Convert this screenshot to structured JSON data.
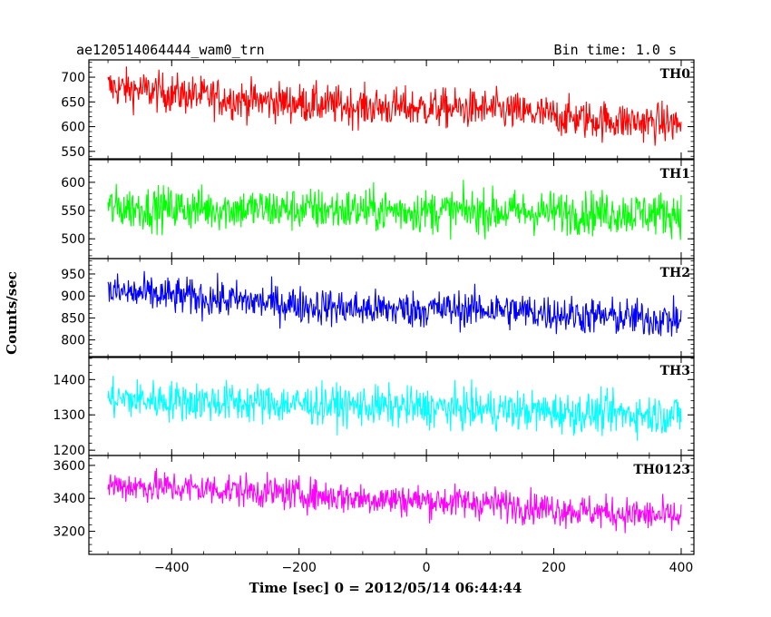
{
  "header": {
    "title": "ae120514064444_wam0_trn",
    "bin_time": "Bin time: 1.0 s"
  },
  "chart_data": {
    "type": "line",
    "xlabel": "Time [sec] 0 = 2012/05/14 06:44:44",
    "ylabel": "Counts/sec",
    "xlim": [
      -530,
      420
    ],
    "x_ticks": [
      -400,
      -200,
      0,
      200,
      400
    ],
    "x_start": -500,
    "x_end": 400,
    "x_step": 1,
    "panels": [
      {
        "name": "TH0",
        "color": "#ff0000",
        "ylim": [
          535,
          735
        ],
        "y_ticks": [
          550,
          600,
          650,
          700
        ],
        "y_tick_labels": [
          "550",
          "600",
          "650",
          "700"
        ],
        "trend": [
          [
            -500,
            680
          ],
          [
            -300,
            655
          ],
          [
            -100,
            640
          ],
          [
            100,
            635
          ],
          [
            250,
            615
          ],
          [
            400,
            605
          ]
        ],
        "noise": 28
      },
      {
        "name": "TH1",
        "color": "#00ff00",
        "ylim": [
          465,
          640
        ],
        "y_ticks": [
          500,
          550,
          600
        ],
        "y_tick_labels": [
          "500",
          "550",
          "600"
        ],
        "trend": [
          [
            -500,
            555
          ],
          [
            -200,
            552
          ],
          [
            100,
            548
          ],
          [
            400,
            545
          ]
        ],
        "noise": 27
      },
      {
        "name": "TH2",
        "color": "#0000ff",
        "ylim": [
          760,
          985
        ],
        "y_ticks": [
          800,
          850,
          900,
          950
        ],
        "y_tick_labels": [
          "800",
          "850",
          "900",
          "950"
        ],
        "trend": [
          [
            -500,
            910
          ],
          [
            -300,
            890
          ],
          [
            -100,
            870
          ],
          [
            100,
            870
          ],
          [
            250,
            855
          ],
          [
            400,
            845
          ]
        ],
        "noise": 30
      },
      {
        "name": "TH3",
        "color": "#00ffff",
        "ylim": [
          1185,
          1465
        ],
        "y_ticks": [
          1200,
          1300,
          1400
        ],
        "y_tick_labels": [
          "1200",
          "1300",
          "1400"
        ],
        "trend": [
          [
            -500,
            1345
          ],
          [
            -200,
            1330
          ],
          [
            100,
            1315
          ],
          [
            250,
            1305
          ],
          [
            400,
            1300
          ]
        ],
        "noise": 40
      },
      {
        "name": "TH0123",
        "color": "#ff00ff",
        "ylim": [
          3060,
          3660
        ],
        "y_ticks": [
          3200,
          3400,
          3600
        ],
        "y_tick_labels": [
          "3200",
          "3400",
          "3600"
        ],
        "trend": [
          [
            -500,
            3480
          ],
          [
            -300,
            3450
          ],
          [
            -100,
            3400
          ],
          [
            100,
            3370
          ],
          [
            250,
            3320
          ],
          [
            400,
            3285
          ]
        ],
        "noise": 70
      }
    ]
  }
}
